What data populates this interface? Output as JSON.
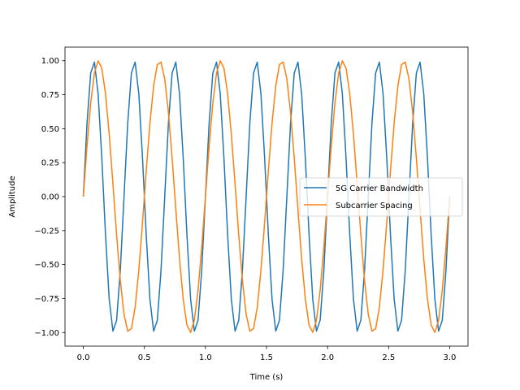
{
  "chart_data": {
    "type": "line",
    "title": "",
    "xlabel": "Time (s)",
    "ylabel": "Amplitude",
    "xlim": [
      -0.15,
      3.15
    ],
    "ylim": [
      -1.1,
      1.1
    ],
    "grid": false,
    "legend_position": "center right",
    "x_ticks": [
      "0.0",
      "0.5",
      "1.0",
      "1.5",
      "2.0",
      "2.5",
      "3.0"
    ],
    "x_tick_values": [
      0,
      0.5,
      1.0,
      1.5,
      2.0,
      2.5,
      3.0
    ],
    "y_ticks": [
      "−1.00",
      "−0.75",
      "−0.50",
      "−0.25",
      "0.00",
      "0.25",
      "0.50",
      "0.75",
      "1.00"
    ],
    "y_tick_values": [
      -1.0,
      -0.75,
      -0.5,
      -0.25,
      0.0,
      0.25,
      0.5,
      0.75,
      1.0
    ],
    "x": {
      "start": 0,
      "stop": 3,
      "num_points": 100
    },
    "series": [
      {
        "name": "5G Carrier Bandwidth",
        "color": "#1f77b4",
        "function": "sin(2*pi*3*t)",
        "frequency_hz": 3,
        "amplitude": 1
      },
      {
        "name": "Subcarrier Spacing",
        "color": "#ff7f0e",
        "function": "sin(2*pi*2*t)",
        "frequency_hz": 2,
        "amplitude": 1
      }
    ]
  },
  "legend": {
    "items": [
      {
        "label": "5G Carrier Bandwidth",
        "color": "#1f77b4"
      },
      {
        "label": "Subcarrier Spacing",
        "color": "#ff7f0e"
      }
    ]
  }
}
